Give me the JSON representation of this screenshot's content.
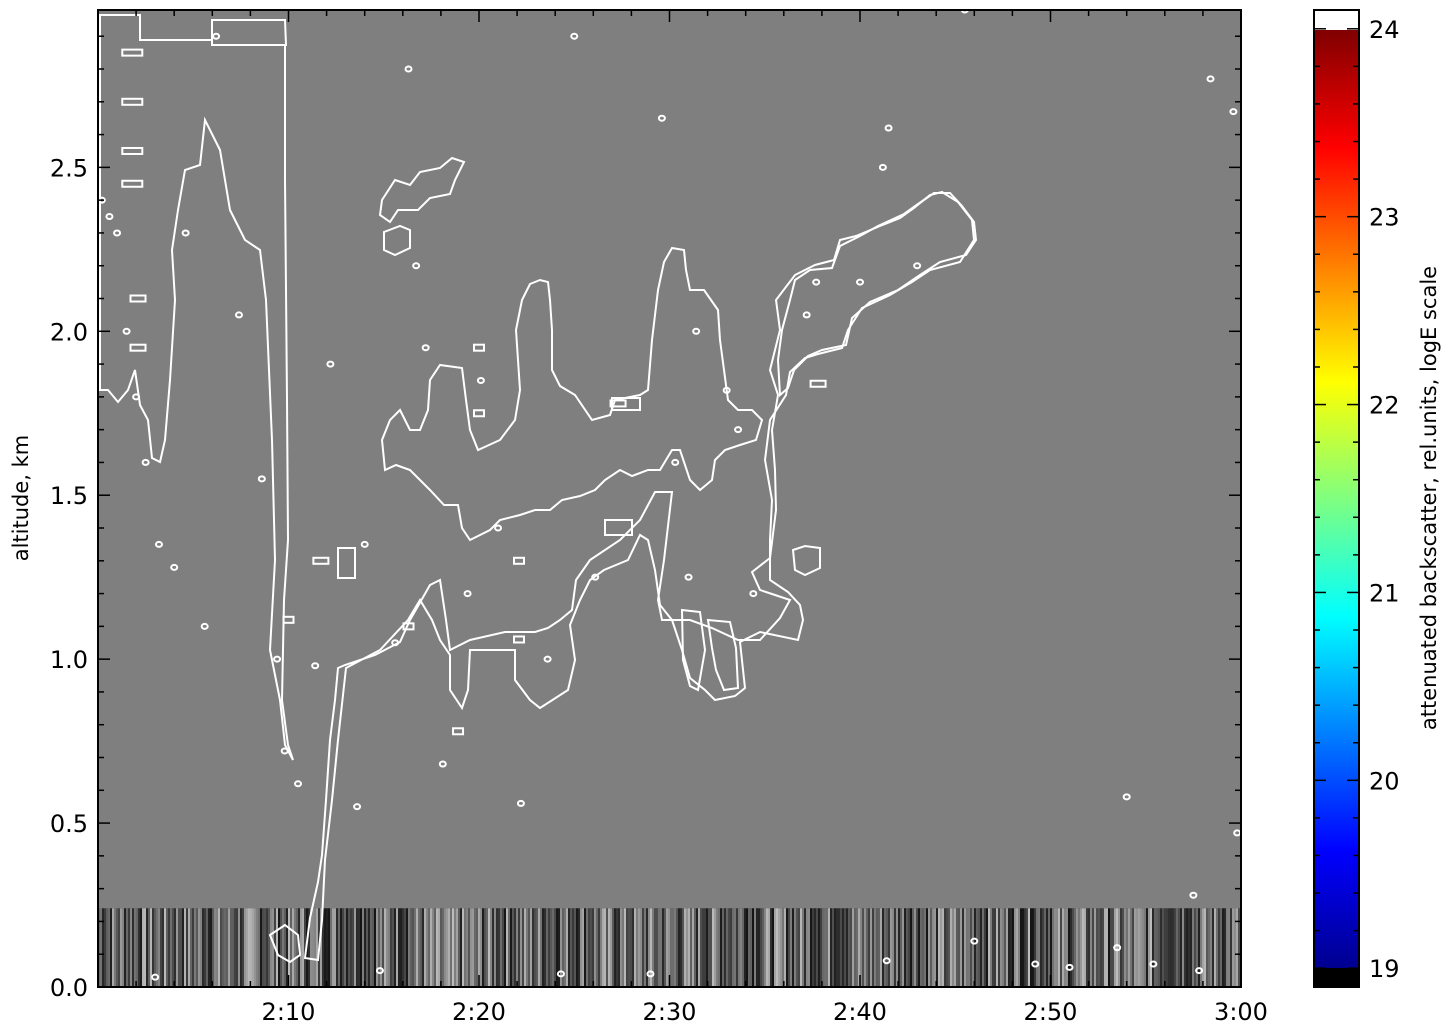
{
  "chart_data": [
    {
      "type": "heatmap",
      "description_of_content": "Lidar time-height cross-section; plot area filled gray with white contour outlines of backscatter features and a noisy band near the surface",
      "x_ticks": [
        "2:10",
        "2:20",
        "2:30",
        "2:40",
        "2:50",
        "3:00"
      ],
      "x_range": [
        "2:00",
        "3:00"
      ],
      "y_ticks": [
        "0.0",
        "0.5",
        "1.0",
        "1.5",
        "2.0",
        "2.5"
      ],
      "ylim": [
        0.0,
        2.98
      ],
      "ylabel": "altitude, km",
      "xlabel": "",
      "title": "",
      "grid": false,
      "plot_fill_color": "#7f7f7f",
      "contour_color": "#ffffff",
      "near_surface_band_top_km": 0.24,
      "contour_features": [
        {
          "name": "left column",
          "x_start": "2:00",
          "x_end": "2:10",
          "y_bottom_km": 0.73,
          "y_top_km": 2.9
        },
        {
          "name": "central cloud mass",
          "x_start": "2:11",
          "x_end": "2:39",
          "y_bottom_km": 0.22,
          "y_top_km": 2.3
        },
        {
          "name": "upper-right plume",
          "x_start": "2:32",
          "x_end": "2:46",
          "y_bottom_km": 1.3,
          "y_top_km": 2.42
        }
      ]
    },
    {
      "type": "colorbar",
      "ticks": [
        19,
        20,
        21,
        22,
        23,
        24
      ],
      "range": [
        18.9,
        24.1
      ],
      "colormap": "jet",
      "under_color": "#000000",
      "over_color": "#ffffff",
      "label": "attenuated backscatter, rel.units, logE scale"
    }
  ]
}
